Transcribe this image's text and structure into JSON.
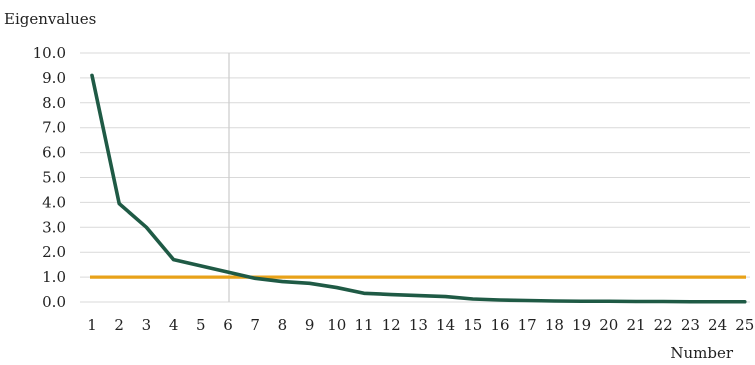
{
  "chart_data": {
    "type": "line",
    "title": "",
    "ylabel": "Eigenvalues",
    "xlabel": "Number",
    "ylim": [
      0,
      10
    ],
    "yticks": [
      "0.0",
      "1.0",
      "2.0",
      "3.0",
      "4.0",
      "5.0",
      "6.0",
      "7.0",
      "8.0",
      "9.0",
      "10.0"
    ],
    "x": [
      1,
      2,
      3,
      4,
      5,
      6,
      7,
      8,
      9,
      10,
      11,
      12,
      13,
      14,
      15,
      16,
      17,
      18,
      19,
      20,
      21,
      22,
      23,
      24,
      25
    ],
    "xticks": [
      "1",
      "2",
      "3",
      "4",
      "5",
      "6",
      "7",
      "8",
      "9",
      "10",
      "11",
      "12",
      "13",
      "14",
      "15",
      "16",
      "17",
      "18",
      "19",
      "20",
      "21",
      "22",
      "23",
      "24",
      "25"
    ],
    "grid": true,
    "series": [
      {
        "color": "#1f5a45",
        "values": [
          9.1,
          3.95,
          3.0,
          1.7,
          1.45,
          1.2,
          0.95,
          0.82,
          0.75,
          0.58,
          0.35,
          0.3,
          0.26,
          0.22,
          0.12,
          0.08,
          0.06,
          0.04,
          0.03,
          0.03,
          0.02,
          0.02,
          0.01,
          0.01,
          0.01
        ]
      }
    ],
    "reference_line": {
      "y": 1.0,
      "color": "#e8a219"
    },
    "vertical_marker": {
      "x": 6,
      "color": "#cccccc"
    },
    "grid_color": "#d9d9d9"
  }
}
